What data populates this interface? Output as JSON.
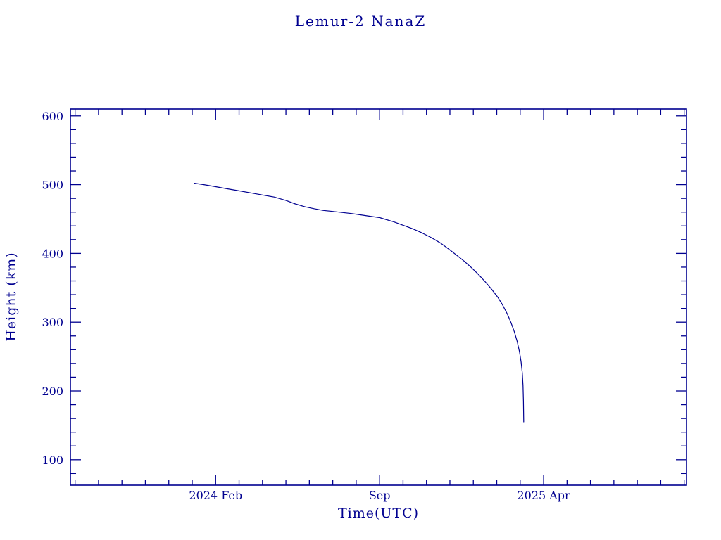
{
  "page": {
    "background": "#ffffff"
  },
  "colors": {
    "line": "#000090",
    "text": "#000090"
  },
  "chart_data": {
    "type": "line",
    "title": "Lemur-2 NanaZ",
    "xlabel": "Time(UTC)",
    "ylabel": "Height (km)",
    "x_unit": "months since 2024-01-01",
    "xlim": [
      -5.2,
      21.1
    ],
    "ylim": [
      63,
      610
    ],
    "y_major_ticks": [
      100,
      200,
      300,
      400,
      500,
      600
    ],
    "y_minor_step": 20,
    "x_major_ticks": [
      {
        "t": 1,
        "label": "2024 Feb"
      },
      {
        "t": 8,
        "label": "Sep"
      },
      {
        "t": 15,
        "label": "2025 Apr"
      }
    ],
    "x_minor_step": 1,
    "grid": false,
    "legend": "none",
    "series": [
      {
        "name": "orbital-height",
        "x": [
          0.1,
          0.5,
          1.0,
          1.5,
          2.0,
          2.5,
          3.0,
          3.5,
          4.0,
          4.4,
          4.8,
          5.2,
          5.6,
          6.0,
          6.4,
          6.8,
          7.2,
          7.6,
          8.0,
          8.2,
          8.6,
          9.0,
          9.4,
          9.8,
          10.2,
          10.6,
          11.0,
          11.3,
          11.6,
          11.9,
          12.2,
          12.5,
          12.8,
          13.05,
          13.25,
          13.45,
          13.6,
          13.75,
          13.87,
          13.97,
          14.04,
          14.09,
          14.12,
          14.14,
          14.15
        ],
        "y": [
          502,
          500,
          497,
          494,
          491,
          488,
          485,
          482,
          477,
          472,
          468,
          465,
          462.5,
          461,
          459.5,
          458,
          456,
          454,
          452,
          450,
          446,
          441,
          436,
          430,
          423,
          415,
          405,
          397,
          389,
          380,
          370,
          359,
          347,
          336,
          325,
          312,
          300,
          286,
          272,
          257,
          242,
          226,
          208,
          185,
          155
        ]
      }
    ]
  }
}
